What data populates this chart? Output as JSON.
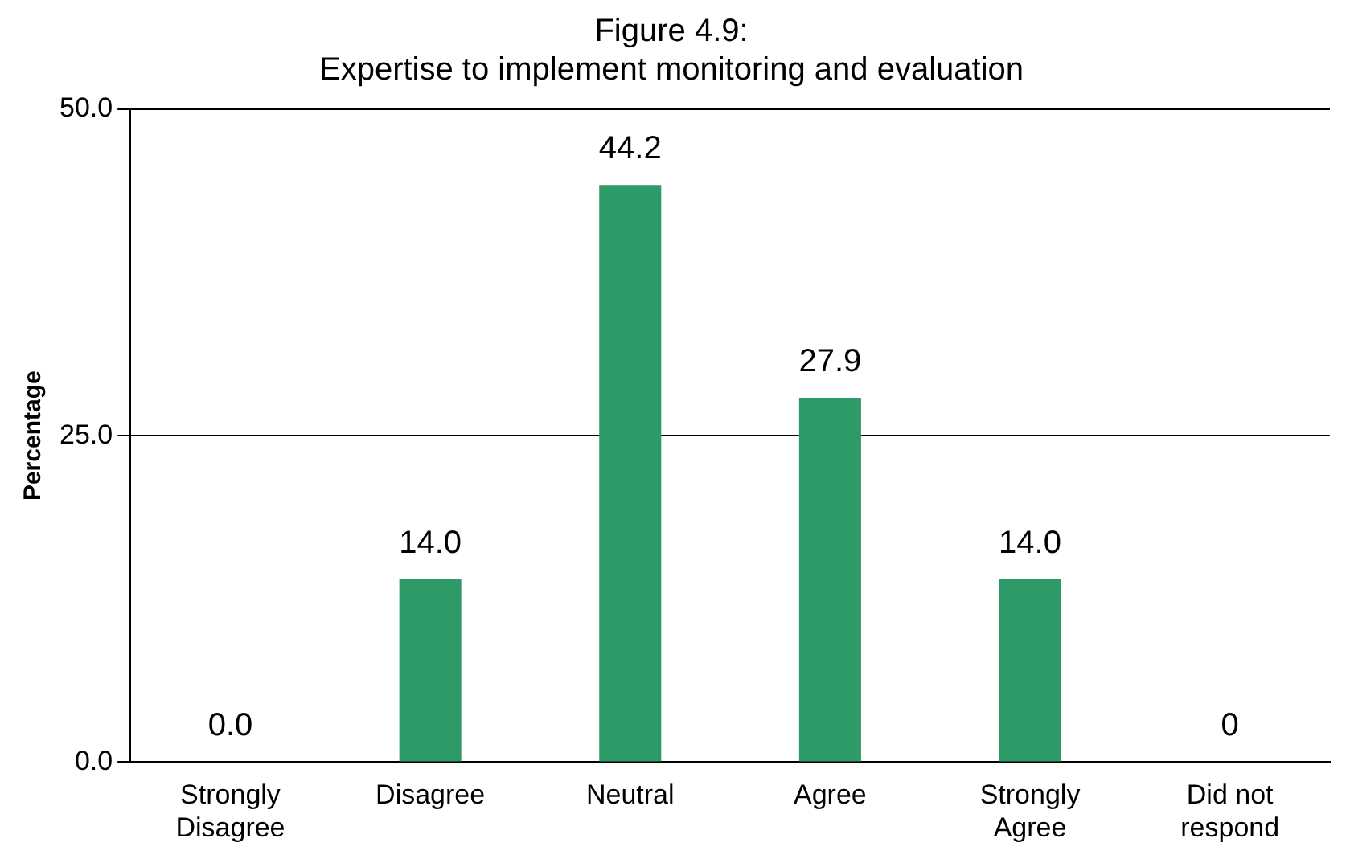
{
  "chart_data": {
    "type": "bar",
    "title": "Figure 4.9:\nExpertise to implement monitoring and evaluation",
    "ylabel": "Percentage",
    "categories": [
      "Strongly\nDisagree",
      "Disagree",
      "Neutral",
      "Agree",
      "Strongly\nAgree",
      "Did not\nrespond"
    ],
    "values": [
      0,
      14.0,
      44.2,
      27.9,
      14.0,
      0
    ],
    "color": "#2e9a68",
    "value_labels": [
      "0.0",
      "14.0",
      "44.2",
      "27.9",
      "14.0",
      "0"
    ],
    "ylim": [
      0,
      50
    ],
    "yticks": [
      {
        "value": 0,
        "label": "0.0"
      },
      {
        "value": 25,
        "label": "25.0"
      },
      {
        "value": 50,
        "label": "50.0"
      }
    ],
    "grid": "y",
    "legend": false
  }
}
